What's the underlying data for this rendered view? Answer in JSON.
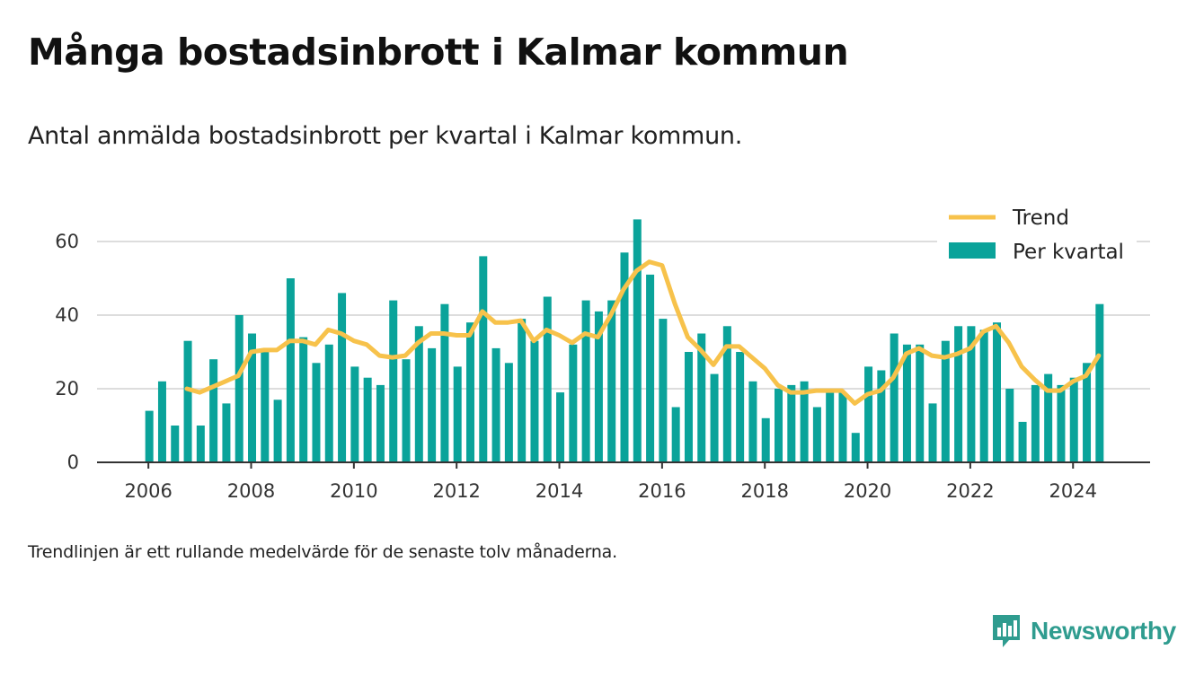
{
  "title": "Många bostadsinbrott i Kalmar kommun",
  "subtitle": "Antal anmälda bostadsinbrott per kvartal i Kalmar kommun.",
  "note": "Trendlinjen är ett rullande medelvärde för de senaste tolv månaderna.",
  "brand": {
    "name": "Newsworthy",
    "icon": "newsworthy-logo-icon"
  },
  "colors": {
    "bars": "#0aa39a",
    "trend": "#f7c24b",
    "grid": "#dddddd",
    "axis": "#333333"
  },
  "chart_data": {
    "type": "bar",
    "title": "",
    "xlabel": "",
    "ylabel": "",
    "ylim": [
      0,
      70
    ],
    "xlim": [
      2005,
      2025.5
    ],
    "yticks": [
      0,
      20,
      40,
      60
    ],
    "xticks": [
      2006,
      2008,
      2010,
      2012,
      2014,
      2016,
      2018,
      2020,
      2022,
      2024
    ],
    "grid": true,
    "legend_position": "top-right",
    "legend": [
      "Trend",
      "Per kvartal"
    ],
    "series": [
      {
        "name": "Per kvartal",
        "kind": "bar",
        "x": [
          2006.0,
          2006.25,
          2006.5,
          2006.75,
          2007.0,
          2007.25,
          2007.5,
          2007.75,
          2008.0,
          2008.25,
          2008.5,
          2008.75,
          2009.0,
          2009.25,
          2009.5,
          2009.75,
          2010.0,
          2010.25,
          2010.5,
          2010.75,
          2011.0,
          2011.25,
          2011.5,
          2011.75,
          2012.0,
          2012.25,
          2012.5,
          2012.75,
          2013.0,
          2013.25,
          2013.5,
          2013.75,
          2014.0,
          2014.25,
          2014.5,
          2014.75,
          2015.0,
          2015.25,
          2015.5,
          2015.75,
          2016.0,
          2016.25,
          2016.5,
          2016.75,
          2017.0,
          2017.25,
          2017.5,
          2017.75,
          2018.0,
          2018.25,
          2018.5,
          2018.75,
          2019.0,
          2019.25,
          2019.5,
          2019.75,
          2020.0,
          2020.25,
          2020.5,
          2020.75,
          2021.0,
          2021.25,
          2021.5,
          2021.75,
          2022.0,
          2022.25,
          2022.5,
          2022.75,
          2023.0,
          2023.25,
          2023.5,
          2023.75,
          2024.0,
          2024.25,
          2024.5
        ],
        "values": [
          14,
          22,
          10,
          33,
          10,
          28,
          16,
          40,
          35,
          30,
          17,
          50,
          34,
          27,
          32,
          46,
          26,
          23,
          21,
          44,
          28,
          37,
          31,
          43,
          26,
          38,
          56,
          31,
          27,
          39,
          33,
          45,
          19,
          32,
          44,
          41,
          44,
          57,
          66,
          51,
          39,
          15,
          30,
          35,
          24,
          37,
          30,
          22,
          12,
          20,
          21,
          22,
          15,
          20,
          19,
          8,
          26,
          25,
          35,
          32,
          32,
          16,
          33,
          37,
          37,
          36,
          38,
          20,
          11,
          21,
          24,
          21,
          23,
          27,
          43
        ]
      },
      {
        "name": "Trend",
        "kind": "line",
        "x": [
          2006.75,
          2007.0,
          2007.25,
          2007.5,
          2007.75,
          2008.0,
          2008.25,
          2008.5,
          2008.75,
          2009.0,
          2009.25,
          2009.5,
          2009.75,
          2010.0,
          2010.25,
          2010.5,
          2010.75,
          2011.0,
          2011.25,
          2011.5,
          2011.75,
          2012.0,
          2012.25,
          2012.5,
          2012.75,
          2013.0,
          2013.25,
          2013.5,
          2013.75,
          2014.0,
          2014.25,
          2014.5,
          2014.75,
          2015.0,
          2015.25,
          2015.5,
          2015.75,
          2016.0,
          2016.25,
          2016.5,
          2016.75,
          2017.0,
          2017.25,
          2017.5,
          2017.75,
          2018.0,
          2018.25,
          2018.5,
          2018.75,
          2019.0,
          2019.25,
          2019.5,
          2019.75,
          2020.0,
          2020.25,
          2020.5,
          2020.75,
          2021.0,
          2021.25,
          2021.5,
          2021.75,
          2022.0,
          2022.25,
          2022.5,
          2022.75,
          2023.0,
          2023.25,
          2023.5,
          2023.75,
          2024.0,
          2024.25,
          2024.5
        ],
        "values": [
          20,
          19,
          20.5,
          22,
          23.5,
          30,
          30.5,
          30.5,
          33,
          33,
          32,
          36,
          35,
          33,
          32,
          29,
          28.5,
          29,
          32.5,
          35,
          35,
          34.5,
          34.5,
          41,
          38,
          38,
          38.5,
          33,
          36,
          34.5,
          32.5,
          35,
          34,
          40,
          47,
          52,
          54.5,
          53.5,
          43,
          34,
          30.5,
          26.5,
          31.5,
          31.5,
          28.5,
          25.5,
          21,
          19,
          19,
          19.5,
          19.5,
          19.5,
          16,
          18.5,
          19.5,
          23,
          29.5,
          31,
          29,
          28.5,
          29.5,
          31,
          35.5,
          37,
          32.5,
          26,
          22.5,
          19.5,
          19.5,
          22,
          23.5,
          29
        ]
      }
    ]
  }
}
